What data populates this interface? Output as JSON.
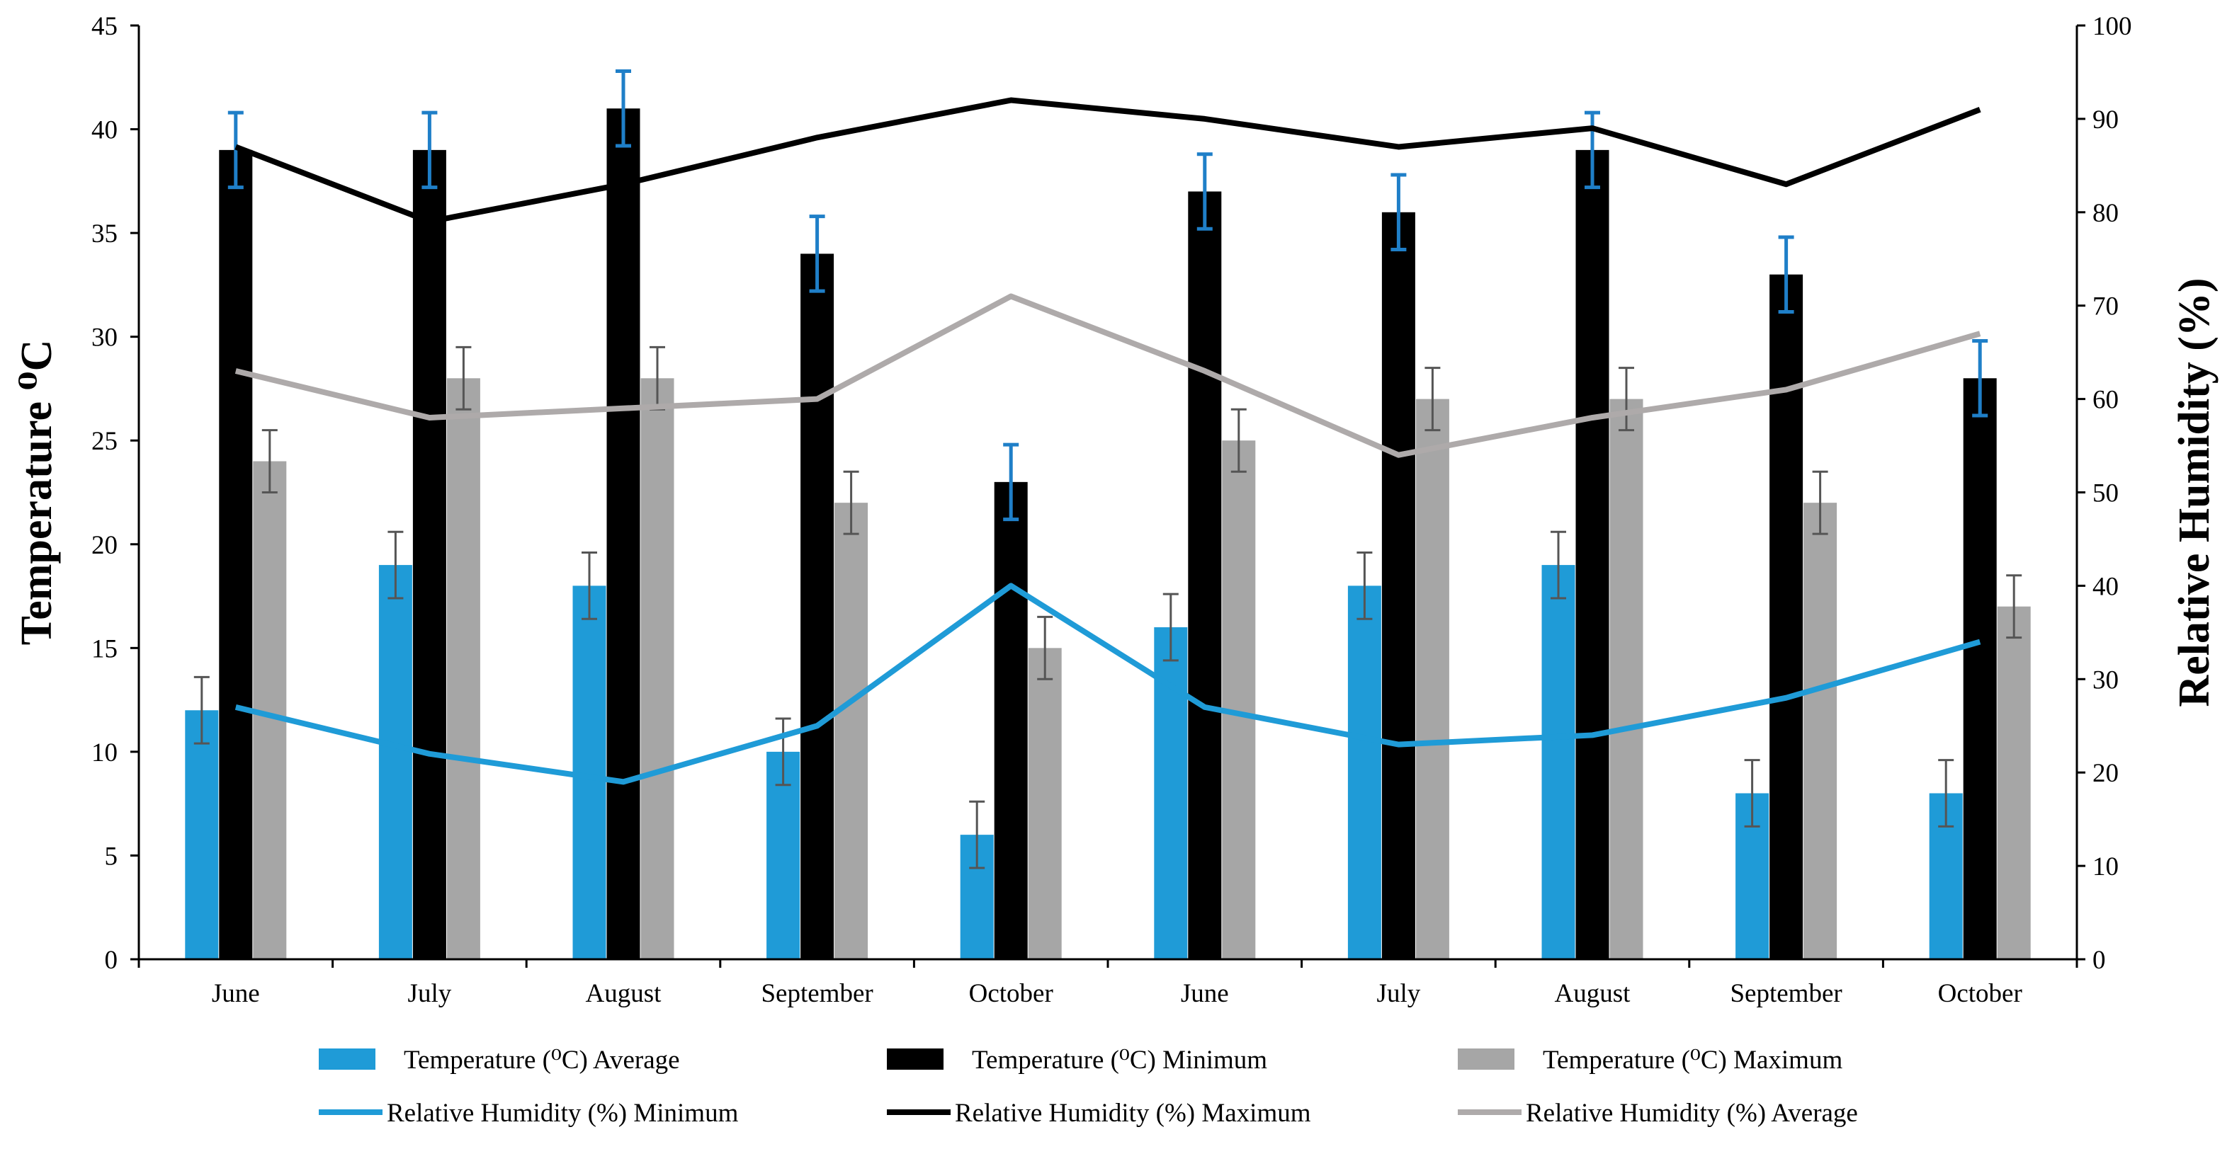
{
  "chart_data": {
    "type": "bar",
    "categories": [
      "June",
      "July",
      "August",
      "September",
      "October",
      "June",
      "July",
      "August",
      "September",
      "October"
    ],
    "ylabel_left": "Temperature ⁰C",
    "ylabel_right": "Relative Humidity (%)",
    "ylim_left": [
      0,
      45
    ],
    "ylim_right": [
      0,
      100
    ],
    "yticks_left": [
      "0",
      "5",
      "10",
      "15",
      "20",
      "25",
      "30",
      "35",
      "40",
      "45"
    ],
    "yticks_right": [
      "0",
      "10",
      "20",
      "30",
      "40",
      "50",
      "60",
      "70",
      "80",
      "90",
      "100"
    ],
    "grid": false,
    "legend_position": "bottom",
    "bar_series": [
      {
        "name": "Temperature (⁰C) Average",
        "axis": "left",
        "color": "#1f9bd7",
        "error_color": "#555555",
        "values": [
          12,
          19,
          18,
          10,
          6,
          16,
          18,
          19,
          8,
          8
        ],
        "error": 1.6
      },
      {
        "name": "Temperature (⁰C) Minimum",
        "axis": "left",
        "color": "#000000",
        "error_color": "#1f7fc8",
        "values": [
          39,
          39,
          41,
          34,
          23,
          37,
          36,
          39,
          33,
          28
        ],
        "error": 1.8
      },
      {
        "name": "Temperature (⁰C) Maximum",
        "axis": "left",
        "color": "#a6a6a6",
        "error_color": "#555555",
        "values": [
          24,
          28,
          28,
          22,
          15,
          25,
          27,
          27,
          22,
          17
        ],
        "error": 1.5
      }
    ],
    "line_series": [
      {
        "name": "Relative Humidity (%) Minimum",
        "axis": "right",
        "color": "#1f9bd7",
        "values": [
          27,
          22,
          19,
          25,
          40,
          27,
          23,
          24,
          28,
          34
        ]
      },
      {
        "name": "Relative Humidity (%) Maximum",
        "axis": "right",
        "color": "#000000",
        "values": [
          87,
          79,
          83,
          88,
          92,
          90,
          87,
          89,
          83,
          91
        ]
      },
      {
        "name": "Relative Humidity (%) Average",
        "axis": "right",
        "color": "#aeaaaa",
        "values": [
          63,
          58,
          59,
          60,
          71,
          63,
          54,
          58,
          61,
          67
        ]
      }
    ]
  }
}
